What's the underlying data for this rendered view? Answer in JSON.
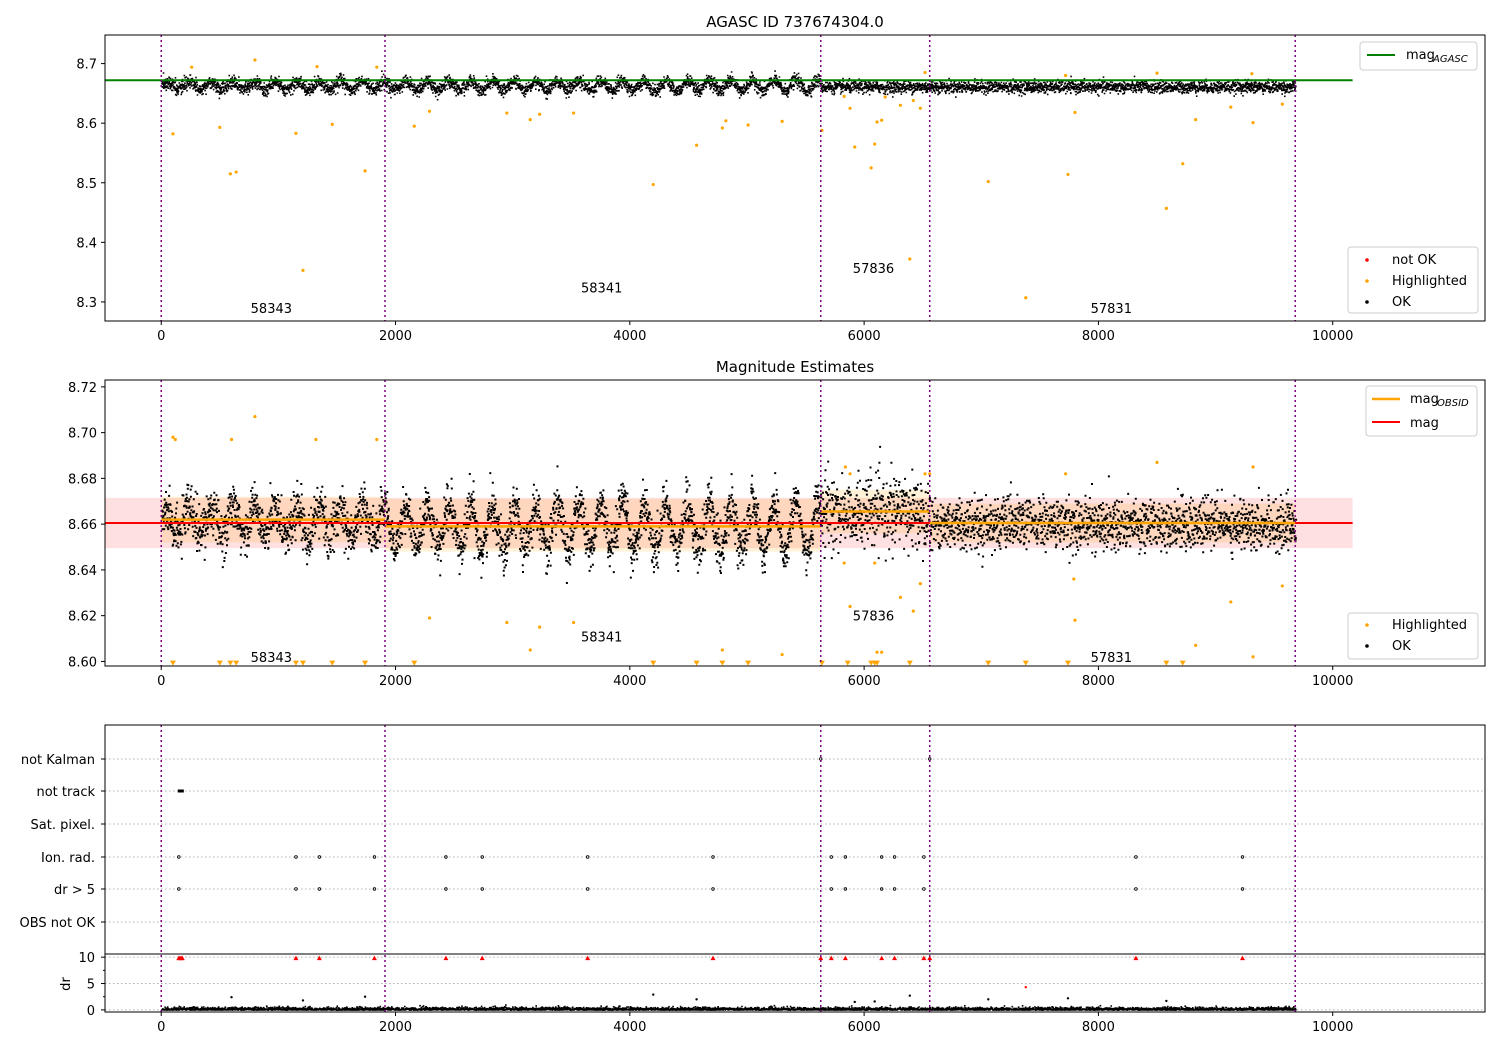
{
  "chart_data": [
    {
      "type": "scatter",
      "title": "AGASC ID 737674304.0",
      "xlim": [
        -480,
        11300
      ],
      "ylim": [
        8.268,
        8.748
      ],
      "xticks": [
        0,
        2000,
        4000,
        6000,
        8000,
        10000
      ],
      "yticks": [
        8.3,
        8.4,
        8.5,
        8.6,
        8.7
      ],
      "xtick_labels": [
        "0",
        "2000",
        "4000",
        "6000",
        "8000",
        "10000"
      ],
      "ytick_labels": [
        "8.3",
        "8.4",
        "8.5",
        "8.6",
        "8.7"
      ],
      "mag_agasc": 8.672,
      "mag_agasc_range": [
        -480,
        10170
      ],
      "obsid_boundaries": [
        0,
        1910,
        5630,
        6560,
        9680
      ],
      "obsid_labels": [
        {
          "text": "58343",
          "x": 940,
          "y": 8.29
        },
        {
          "text": "58341",
          "x": 3760,
          "y": 8.324
        },
        {
          "text": "57836",
          "x": 6080,
          "y": 8.357
        },
        {
          "text": "57831",
          "x": 8110,
          "y": 8.29
        }
      ],
      "highlighted_points": [
        [
          100,
          8.582
        ],
        [
          500,
          8.593
        ],
        [
          590,
          8.515
        ],
        [
          640,
          8.518
        ],
        [
          1150,
          8.583
        ],
        [
          1460,
          8.598
        ],
        [
          1740,
          8.52
        ],
        [
          1210,
          8.353
        ],
        [
          2160,
          8.595
        ],
        [
          2290,
          8.62
        ],
        [
          2950,
          8.617
        ],
        [
          3150,
          8.606
        ],
        [
          3230,
          8.615
        ],
        [
          3520,
          8.617
        ],
        [
          4200,
          8.497
        ],
        [
          4570,
          8.563
        ],
        [
          4790,
          8.592
        ],
        [
          4820,
          8.604
        ],
        [
          5010,
          8.597
        ],
        [
          5300,
          8.603
        ],
        [
          5640,
          8.588
        ],
        [
          5830,
          8.645
        ],
        [
          5880,
          8.625
        ],
        [
          5920,
          8.56
        ],
        [
          6060,
          8.525
        ],
        [
          6090,
          8.565
        ],
        [
          6110,
          8.602
        ],
        [
          6150,
          8.605
        ],
        [
          6180,
          8.644
        ],
        [
          6310,
          8.63
        ],
        [
          6390,
          8.372
        ],
        [
          6420,
          8.638
        ],
        [
          6480,
          8.625
        ],
        [
          7060,
          8.502
        ],
        [
          7380,
          8.307
        ],
        [
          7740,
          8.514
        ],
        [
          7800,
          8.618
        ],
        [
          8580,
          8.457
        ],
        [
          8720,
          8.532
        ],
        [
          8830,
          8.606
        ],
        [
          9130,
          8.627
        ],
        [
          9320,
          8.601
        ],
        [
          9570,
          8.632
        ],
        [
          260,
          8.694
        ],
        [
          800,
          8.706
        ],
        [
          1330,
          8.695
        ],
        [
          1840,
          8.694
        ],
        [
          6520,
          8.685
        ],
        [
          7720,
          8.68
        ],
        [
          8500,
          8.684
        ],
        [
          9310,
          8.683
        ]
      ],
      "legend": [
        {
          "label": "not OK",
          "color": "#ff0000",
          "kind": "dot"
        },
        {
          "label": "Highlighted",
          "color": "#ffa500",
          "kind": "dot"
        },
        {
          "label": "OK",
          "color": "#000000",
          "kind": "dot"
        },
        {
          "label": "mag",
          "sub": "AGASC",
          "color": "#008000",
          "kind": "line"
        }
      ]
    },
    {
      "type": "scatter",
      "title": "Magnitude Estimates",
      "xlim": [
        -480,
        11300
      ],
      "ylim": [
        8.598,
        8.723
      ],
      "xticks": [
        0,
        2000,
        4000,
        6000,
        8000,
        10000
      ],
      "yticks": [
        8.6,
        8.62,
        8.64,
        8.66,
        8.68,
        8.7,
        8.72
      ],
      "xtick_labels": [
        "0",
        "2000",
        "4000",
        "6000",
        "8000",
        "10000"
      ],
      "ytick_labels": [
        "8.60",
        "8.62",
        "8.64",
        "8.66",
        "8.68",
        "8.70",
        "8.72"
      ],
      "mag": 8.6605,
      "mag_band": [
        8.6495,
        8.6715
      ],
      "mag_range": [
        -480,
        10170
      ],
      "mag_obsid": [
        {
          "x": [
            0,
            1910
          ],
          "y": 8.662
        },
        {
          "x": [
            1910,
            5630
          ],
          "y": 8.659
        },
        {
          "x": [
            5630,
            6560
          ],
          "y": 8.6655
        },
        {
          "x": [
            6560,
            9680
          ],
          "y": 8.6605
        }
      ],
      "obsid_band": [
        {
          "x": [
            0,
            1910
          ],
          "lo": 8.652,
          "hi": 8.672
        },
        {
          "x": [
            1910,
            5630
          ],
          "lo": 8.648,
          "hi": 8.671
        },
        {
          "x": [
            5630,
            6560
          ],
          "lo": 8.656,
          "hi": 8.675
        },
        {
          "x": [
            6560,
            9680
          ],
          "lo": 8.652,
          "hi": 8.669
        }
      ],
      "obsid_boundaries": [
        0,
        1910,
        5630,
        6560,
        9680
      ],
      "obsid_labels": [
        {
          "text": "58343",
          "x": 940,
          "y": 8.602
        },
        {
          "text": "58341",
          "x": 3760,
          "y": 8.611
        },
        {
          "text": "57836",
          "x": 6080,
          "y": 8.62
        },
        {
          "text": "57831",
          "x": 8110,
          "y": 8.602
        }
      ],
      "highlighted_points": [
        [
          100,
          8.698
        ],
        [
          120,
          8.697
        ],
        [
          600,
          8.697
        ],
        [
          1320,
          8.697
        ],
        [
          1840,
          8.697
        ],
        [
          800,
          8.707
        ],
        [
          2290,
          8.619
        ],
        [
          2950,
          8.617
        ],
        [
          3150,
          8.605
        ],
        [
          3230,
          8.615
        ],
        [
          3520,
          8.617
        ],
        [
          4790,
          8.605
        ],
        [
          5300,
          8.603
        ],
        [
          5830,
          8.643
        ],
        [
          5880,
          8.624
        ],
        [
          6090,
          8.643
        ],
        [
          6110,
          8.604
        ],
        [
          6150,
          8.604
        ],
        [
          6310,
          8.628
        ],
        [
          6420,
          8.622
        ],
        [
          6480,
          8.634
        ],
        [
          6520,
          8.682
        ],
        [
          6560,
          8.682
        ],
        [
          7720,
          8.682
        ],
        [
          7800,
          8.618
        ],
        [
          7790,
          8.636
        ],
        [
          8500,
          8.687
        ],
        [
          8830,
          8.607
        ],
        [
          9130,
          8.626
        ],
        [
          9320,
          8.602
        ],
        [
          9570,
          8.633
        ],
        [
          9320,
          8.685
        ],
        [
          5880,
          8.682
        ],
        [
          5840,
          8.685
        ]
      ],
      "below_axis_markers": [
        100,
        500,
        590,
        640,
        1150,
        1210,
        1460,
        1740,
        2160,
        4200,
        4570,
        4790,
        5010,
        5640,
        5860,
        6060,
        6090,
        6110,
        6390,
        7060,
        7380,
        7740,
        8580,
        8720
      ],
      "legend": [
        {
          "label": "Highlighted",
          "color": "#ffa500",
          "kind": "dot"
        },
        {
          "label": "OK",
          "color": "#000000",
          "kind": "dot"
        },
        {
          "label": "mag",
          "sub": "OBSID",
          "color": "#ffa500",
          "kind": "line"
        },
        {
          "label": "mag",
          "color": "#ff0000",
          "kind": "line"
        }
      ]
    },
    {
      "type": "scatter",
      "title": "",
      "xlim": [
        -480,
        11300
      ],
      "flags": [
        "not Kalman",
        "not track",
        "Sat. pixel.",
        "Ion. rad.",
        "dr > 5",
        "OBS not OK"
      ],
      "flag_events": [
        {
          "flag": "not Kalman",
          "x": [
            5630,
            6560
          ]
        },
        {
          "flag": "not track",
          "x": [
            150,
            160,
            170,
            180
          ]
        },
        {
          "flag": "Ion. rad.",
          "x": [
            150,
            1150,
            1350,
            1820,
            2430,
            2740,
            3640,
            4710,
            5720,
            5840,
            6150,
            6260,
            6510,
            8320,
            9230
          ]
        },
        {
          "flag": "dr > 5",
          "x": [
            150,
            1150,
            1350,
            1820,
            2430,
            2740,
            3640,
            4710,
            5720,
            5840,
            6150,
            6260,
            6510,
            8320,
            9230
          ]
        }
      ],
      "dr_ylabel": "dr",
      "dr_ylim": [
        -0.4,
        10.6
      ],
      "dr_yticks": [
        0,
        5,
        10
      ],
      "dr_ytick_labels": [
        "0",
        "5",
        "10"
      ],
      "xticks": [
        0,
        2000,
        4000,
        6000,
        8000,
        10000
      ],
      "xtick_labels": [
        "0",
        "2000",
        "4000",
        "6000",
        "8000",
        "10000"
      ],
      "dr_clipped": [
        150,
        160,
        170,
        180,
        1150,
        1350,
        1820,
        2430,
        2740,
        3640,
        4710,
        5630,
        5720,
        5840,
        6150,
        6260,
        6510,
        6560,
        8320,
        9230
      ],
      "dr_outliers": [
        [
          600,
          2.4
        ],
        [
          1210,
          1.8
        ],
        [
          1740,
          2.5
        ],
        [
          4200,
          2.9
        ],
        [
          4570,
          2.0
        ],
        [
          5920,
          1.5
        ],
        [
          6090,
          1.6
        ],
        [
          6390,
          2.7
        ],
        [
          7060,
          2.0
        ],
        [
          7740,
          2.2
        ],
        [
          8580,
          1.7
        ],
        [
          7380,
          4.3
        ]
      ],
      "obsid_boundaries": [
        0,
        1910,
        5630,
        6560,
        9680
      ]
    }
  ]
}
